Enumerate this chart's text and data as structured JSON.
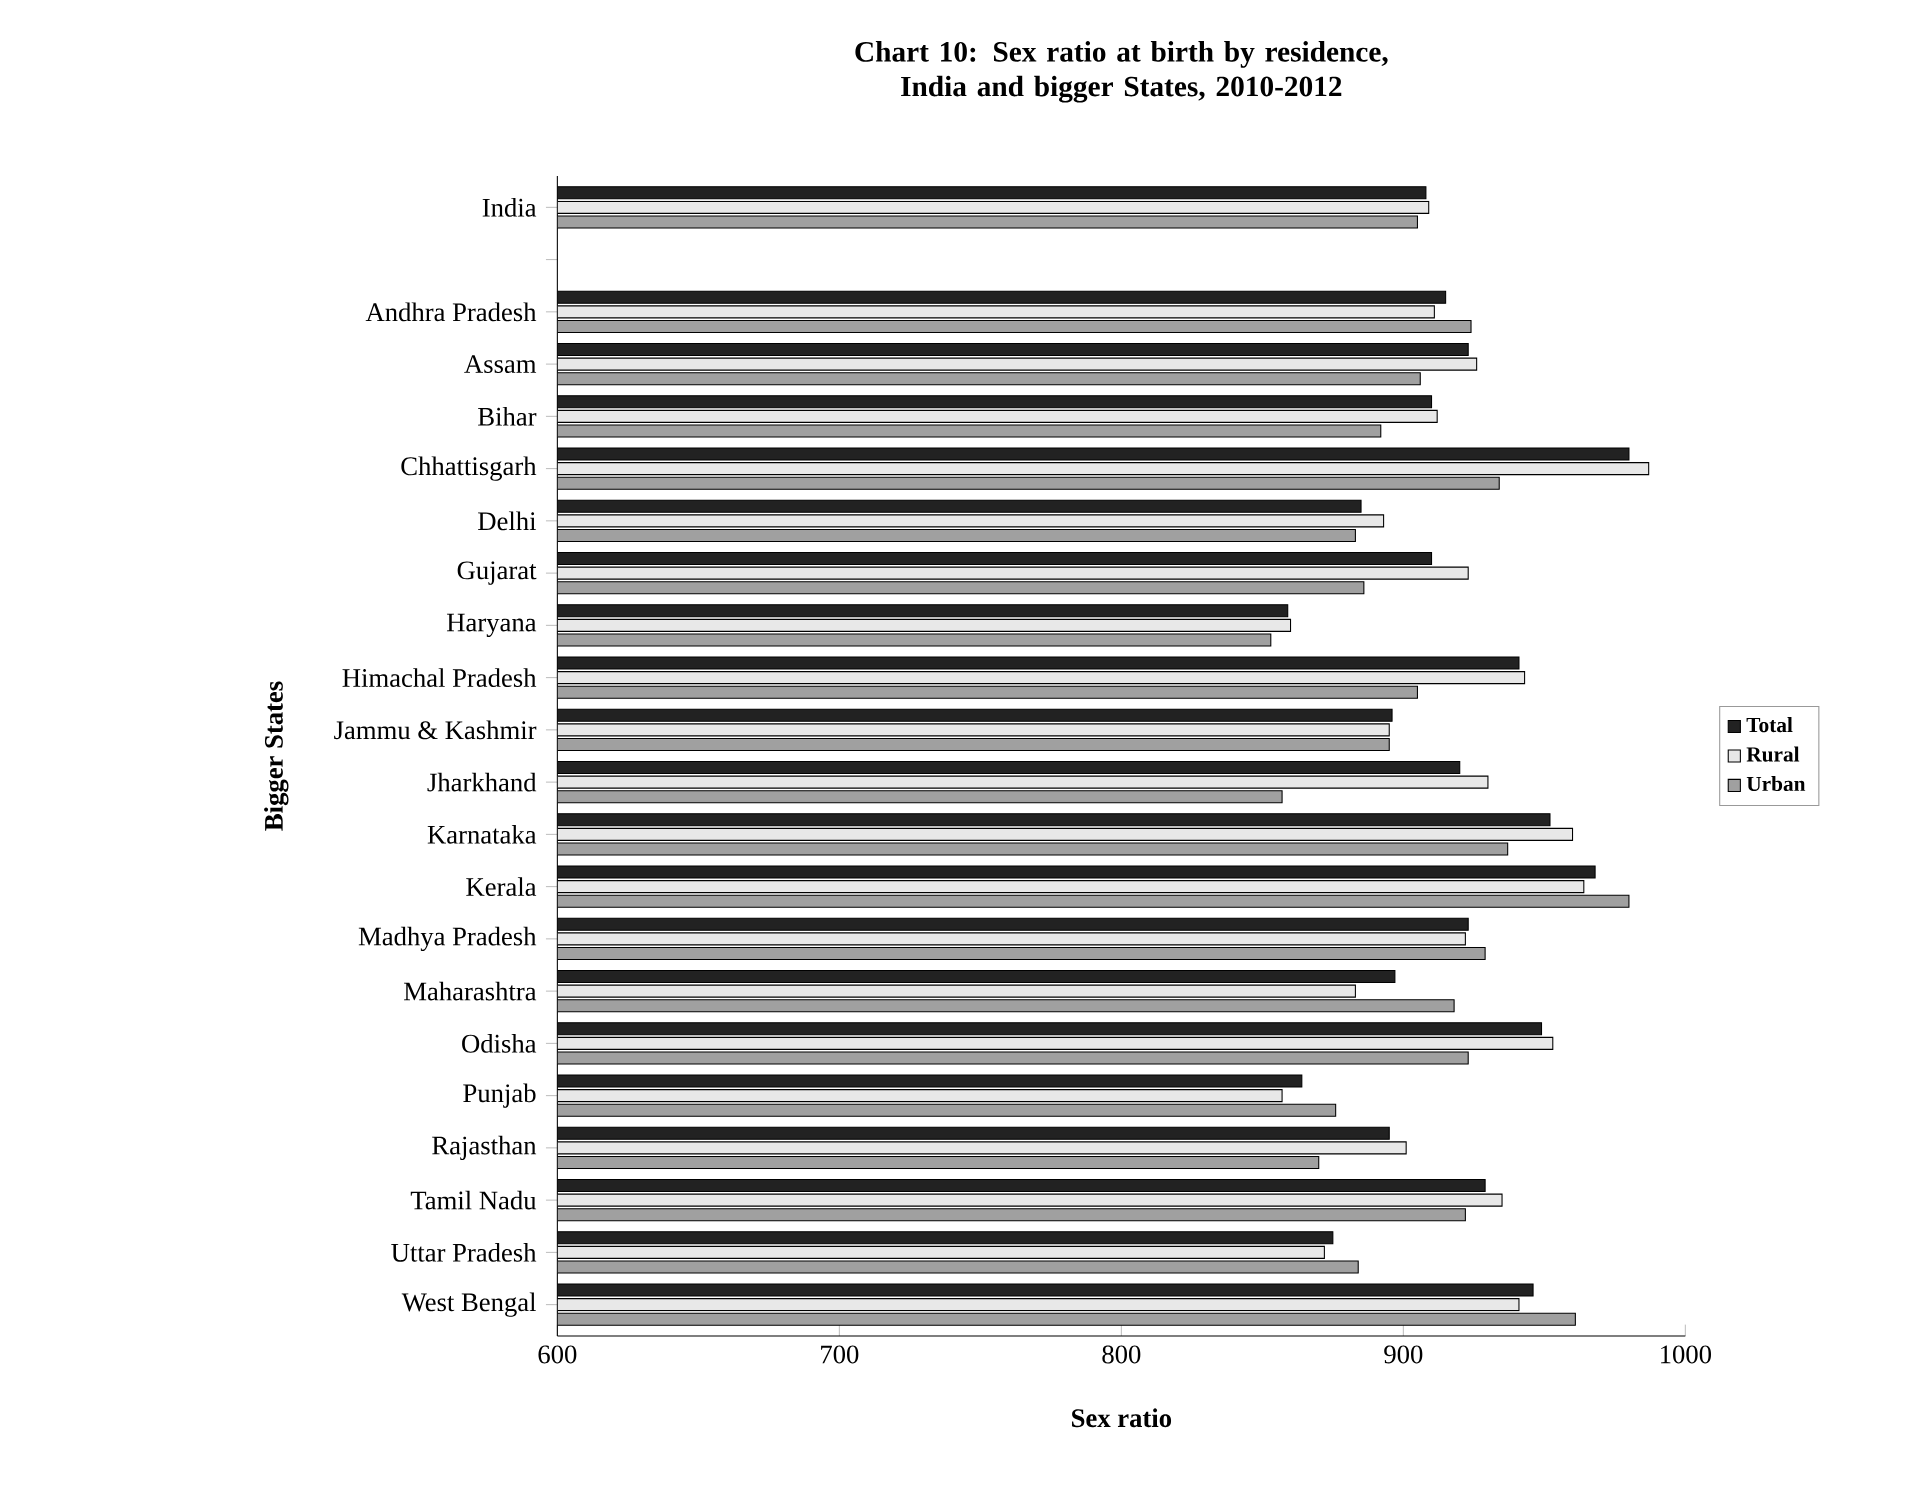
{
  "chart_data": {
    "type": "bar",
    "orientation": "horizontal",
    "title": "Chart 10: Sex ratio at birth by residence, India and bigger States, 2010-2012",
    "xlabel": "Sex ratio",
    "ylabel": "Bigger States",
    "categories": [
      "India",
      null,
      "Andhra Pradesh",
      "Assam",
      "Bihar",
      "Chhattisgarh",
      "Delhi",
      "Gujarat",
      "Haryana",
      "Himachal Pradesh",
      "Jammu & Kashmir",
      "Jharkhand",
      "Karnataka",
      "Kerala",
      "Madhya Pradesh",
      "Maharashtra",
      "Odisha",
      "Punjab",
      "Rajasthan",
      "Tamil Nadu",
      "Uttar Pradesh",
      "West Bengal"
    ],
    "series": [
      {
        "name": "Total",
        "color": "#222222",
        "values": [
          908,
          null,
          915,
          923,
          910,
          980,
          885,
          910,
          859,
          941,
          896,
          920,
          952,
          968,
          923,
          897,
          949,
          864,
          895,
          929,
          875,
          946
        ]
      },
      {
        "name": "Rural",
        "color": "#e8e8e8",
        "values": [
          909,
          null,
          911,
          926,
          912,
          987,
          893,
          923,
          860,
          943,
          895,
          930,
          960,
          964,
          922,
          883,
          953,
          857,
          901,
          935,
          872,
          941
        ]
      },
      {
        "name": "Urban",
        "color": "#a0a0a0",
        "values": [
          905,
          null,
          924,
          906,
          892,
          934,
          883,
          886,
          853,
          905,
          895,
          857,
          937,
          980,
          929,
          918,
          923,
          876,
          870,
          922,
          884,
          961
        ]
      }
    ],
    "xlim": [
      600,
      1000
    ],
    "xticks": [
      600,
      700,
      800,
      900,
      1000
    ],
    "grid": false,
    "legend": "right"
  }
}
